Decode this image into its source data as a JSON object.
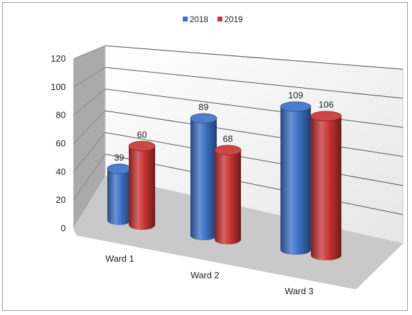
{
  "chart_data": {
    "type": "bar",
    "subtype": "3d-cylinder",
    "title": "",
    "xlabel": "",
    "ylabel": "",
    "categories": [
      "Ward 1",
      "Ward 2",
      "Ward 3"
    ],
    "series": [
      {
        "name": "2018",
        "values": [
          39,
          89,
          109
        ],
        "color": "#3a6fc4"
      },
      {
        "name": "2019",
        "values": [
          60,
          68,
          106
        ],
        "color": "#c83232"
      }
    ],
    "ylim": [
      0,
      120
    ],
    "yticks": [
      0,
      20,
      40,
      60,
      80,
      100,
      120
    ],
    "grid": true,
    "legend_position": "top-center"
  }
}
